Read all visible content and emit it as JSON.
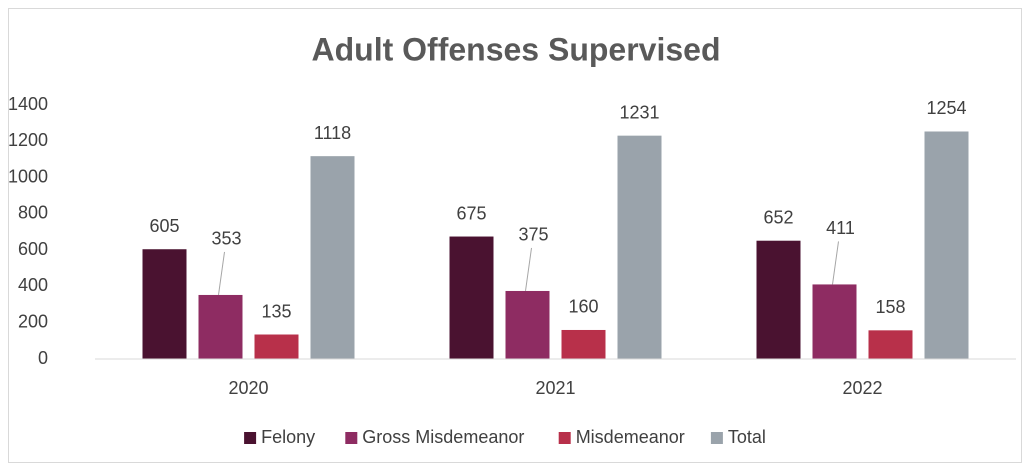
{
  "chart_data": {
    "type": "bar",
    "title": "Adult Offenses Supervised",
    "categories": [
      "2020",
      "2021",
      "2022"
    ],
    "series": [
      {
        "name": "Felony",
        "color": "#4a1230",
        "values": [
          605,
          675,
          652
        ]
      },
      {
        "name": "Gross Misdemeanor",
        "color": "#8e2c62",
        "values": [
          353,
          375,
          411
        ]
      },
      {
        "name": "Misdemeanor",
        "color": "#b8304a",
        "values": [
          135,
          160,
          158
        ]
      },
      {
        "name": "Total",
        "color": "#9aa3ab",
        "values": [
          1118,
          1231,
          1254
        ]
      }
    ],
    "ylim": [
      0,
      1400
    ],
    "yticks": [
      0,
      200,
      400,
      600,
      800,
      1000,
      1200,
      1400
    ],
    "grid": false,
    "legend": "bottom"
  }
}
